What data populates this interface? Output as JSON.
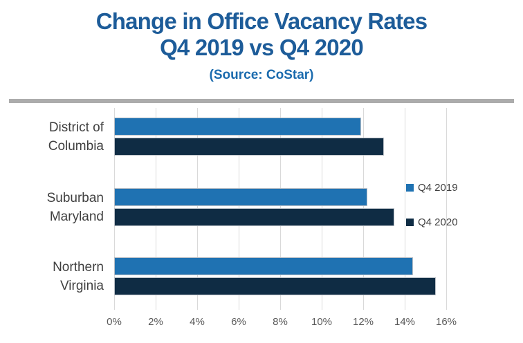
{
  "header": {
    "title_line1": "Change in Office Vacancy Rates",
    "title_line2": "Q4 2019 vs Q4 2020",
    "subtitle": "(Source: CoStar)"
  },
  "colors": {
    "title_text": "#1D5C99",
    "subtitle_text": "#1B6BAE",
    "series_q4_2019": "#1F72B2",
    "series_q4_2020": "#0F2C44",
    "gridline": "#D9D9D9",
    "divider": "#ACACAC",
    "axis_text": "#595959",
    "category_text": "#3F3F3F",
    "legend_text": "#404040"
  },
  "chart_data": {
    "type": "bar",
    "orientation": "horizontal",
    "title": "Change in Office Vacancy Rates Q4 2019 vs Q4 2020",
    "source": "(Source: CoStar)",
    "categories": [
      "District of Columbia",
      "Suburban Maryland",
      "Northern Virginia"
    ],
    "category_label_lines": [
      [
        "District of",
        "Columbia"
      ],
      [
        "Suburban",
        "Maryland"
      ],
      [
        "Northern",
        "Virginia"
      ]
    ],
    "series": [
      {
        "name": "Q4 2019",
        "color": "#1F72B2",
        "values": [
          11.9,
          12.2,
          14.4
        ]
      },
      {
        "name": "Q4 2020",
        "color": "#0F2C44",
        "values": [
          13.0,
          13.5,
          15.5
        ]
      }
    ],
    "xlabel": "",
    "ylabel": "",
    "xlim": [
      0,
      16
    ],
    "x_tick_labels": [
      "0%",
      "2%",
      "4%",
      "6%",
      "8%",
      "10%",
      "12%",
      "14%",
      "16%"
    ],
    "x_tick_values": [
      0,
      2,
      4,
      6,
      8,
      10,
      12,
      14,
      16
    ],
    "grid": true,
    "legend_position": "right"
  }
}
